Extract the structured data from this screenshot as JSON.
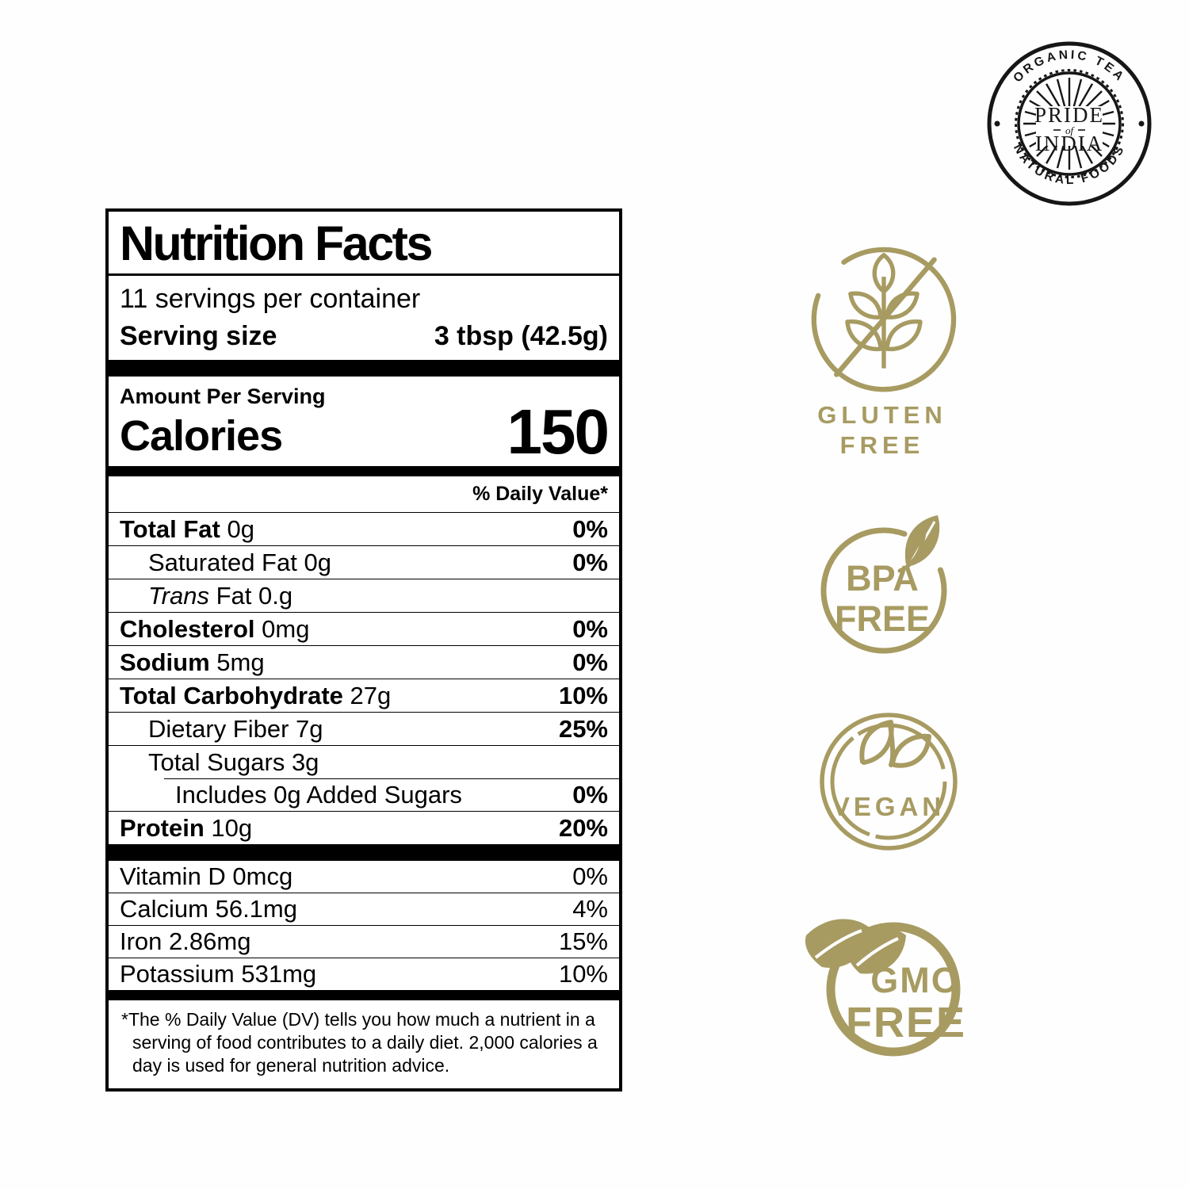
{
  "colors": {
    "accent": "#a79b62",
    "ink": "#161616",
    "label_ink": "#000000",
    "background": "#fefefe"
  },
  "logo": {
    "top_text": "ORGANIC TEA",
    "bottom_text": "NATURAL FOODS",
    "center_line1": "PRIDE",
    "center_line2": "of",
    "center_line3": "INDIA"
  },
  "nutrition_label": {
    "title": "Nutrition Facts",
    "servings_per_container": "11 servings per container",
    "serving_size_label": "Serving size",
    "serving_size_value": "3 tbsp (42.5g)",
    "amount_per_serving": "Amount Per Serving",
    "calories_label": "Calories",
    "calories_value": "150",
    "daily_value_header": "% Daily Value*",
    "main_rows": [
      {
        "name": "Total Fat",
        "amount": "0g",
        "dv": "0%",
        "name_bold": true,
        "dv_bold": true,
        "indent": 0
      },
      {
        "name": "Saturated Fat",
        "amount": "0g",
        "dv": "0%",
        "name_bold": false,
        "dv_bold": true,
        "indent": 1
      },
      {
        "name_italic": "Trans",
        "name": "Fat",
        "amount": "0.g",
        "dv": "",
        "name_bold": false,
        "dv_bold": false,
        "indent": 1
      },
      {
        "name": "Cholesterol",
        "amount": "0mg",
        "dv": "0%",
        "name_bold": true,
        "dv_bold": true,
        "indent": 0
      },
      {
        "name": "Sodium",
        "amount": "5mg",
        "dv": "0%",
        "name_bold": true,
        "dv_bold": true,
        "indent": 0
      },
      {
        "name": "Total Carbohydrate",
        "amount": "27g",
        "dv": "10%",
        "name_bold": true,
        "dv_bold": true,
        "indent": 0
      },
      {
        "name": "Dietary Fiber",
        "amount": "7g",
        "dv": "25%",
        "name_bold": false,
        "dv_bold": true,
        "indent": 1
      },
      {
        "name": "Total Sugars",
        "amount": "3g",
        "dv": "",
        "name_bold": false,
        "dv_bold": false,
        "indent": 1
      },
      {
        "name": "Includes 0g Added Sugars",
        "amount": "",
        "dv": "0%",
        "name_bold": false,
        "dv_bold": true,
        "indent": 2,
        "rule": "indented"
      },
      {
        "name": "Protein",
        "amount": "10g",
        "dv": "20%",
        "name_bold": true,
        "dv_bold": true,
        "indent": 0
      }
    ],
    "vitamin_rows": [
      {
        "name": "Vitamin D",
        "amount": "0mcg",
        "dv": "0%"
      },
      {
        "name": "Calcium",
        "amount": "56.1mg",
        "dv": "4%"
      },
      {
        "name": "Iron",
        "amount": "2.86mg",
        "dv": "15%"
      },
      {
        "name": "Potassium",
        "amount": "531mg",
        "dv": "10%"
      }
    ],
    "footnote": "*The % Daily Value (DV) tells you how much a nutrient in a serving of food contributes to a daily diet. 2,000 calories a day is used for general nutrition advice."
  },
  "badges": {
    "gluten_free": {
      "line1": "GLUTEN",
      "line2": "FREE"
    },
    "bpa_free": {
      "line1": "BPA",
      "line2": "FREE"
    },
    "vegan": {
      "text": "VEGAN"
    },
    "gmo_free": {
      "line1": "GMO",
      "line2": "FREE"
    }
  }
}
